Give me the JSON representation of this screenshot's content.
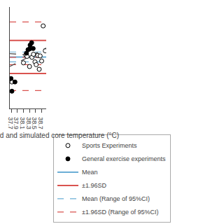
{
  "chart_data": {
    "type": "scatter",
    "xlabel": "Average of measured and simulated core temperature (°C)",
    "xlim": [
      37.65,
      38.85
    ],
    "xticks": [
      37.7,
      37.9,
      38.1,
      38.3,
      38.5,
      38.7
    ],
    "ylim": [
      -2.2,
      2.2
    ],
    "yticks": [],
    "tick_labels": "x",
    "grid": false,
    "legend": "bottom",
    "series": [
      {
        "name": "Sports Experiments",
        "type": "scatter",
        "marker": "circle_open",
        "color": "#000000",
        "x": [
          38.1,
          38.18,
          38.22,
          38.3,
          38.38,
          38.43,
          38.48,
          38.52,
          38.57,
          38.62,
          38.65,
          38.7,
          38.75,
          38.82,
          37.72
        ],
        "values": [
          -0.22,
          0.12,
          0.06,
          -0.38,
          0.02,
          0.15,
          -0.18,
          -0.3,
          0.1,
          -0.5,
          0.08,
          -0.14,
          1.38,
          0.3,
          -1.05
        ]
      },
      {
        "name": "General exercise experiments",
        "type": "scatter",
        "marker": "circle",
        "color": "#000000",
        "x": [
          37.69,
          37.72,
          37.82,
          38.2,
          38.25,
          38.3,
          38.32,
          38.37,
          38.42
        ],
        "values": [
          -0.9,
          -1.45,
          -1.05,
          0.2,
          0.35,
          0.38,
          0.55,
          0.65,
          0.4
        ]
      },
      {
        "name": "Mean",
        "type": "hline",
        "color": "#6baed6",
        "line_style": "solid",
        "values": [
          0.03
        ]
      },
      {
        "name": "±1.96SD",
        "type": "hline",
        "color": "#d9534f",
        "line_style": "solid",
        "values": [
          0.75,
          -0.68
        ]
      },
      {
        "name": "Mean (Range of 95%CI)",
        "type": "hline",
        "color": "#6baed6",
        "line_style": "dashed",
        "values": [
          0.25,
          -0.18
        ]
      },
      {
        "name": "±1.96SD (Range of 95%CI)",
        "type": "hline",
        "color": "#d9534f",
        "line_style": "dashed",
        "values": [
          1.55,
          0.02,
          -0.3,
          -1.42
        ]
      },
      {
        "type": "line",
        "color": "#555555",
        "line_style": "dashed",
        "x": [
          37.65,
          38.85
        ],
        "values": [
          -0.38,
          0.42
        ]
      },
      {
        "type": "line",
        "color": "#555555",
        "line_style": "dashed",
        "x": [
          37.65,
          38.85
        ],
        "values": [
          0.18,
          0.06
        ]
      }
    ]
  }
}
